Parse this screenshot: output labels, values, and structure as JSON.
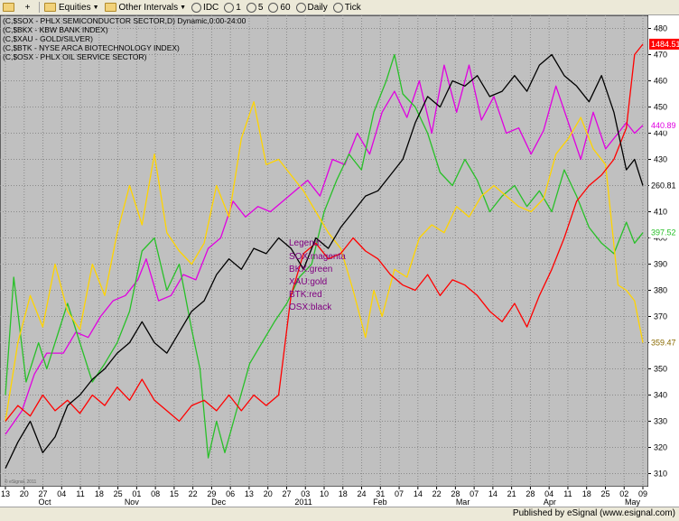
{
  "toolbar": {
    "items": [
      "Equities",
      "Other Intervals",
      "IDC",
      "1",
      "5",
      "60",
      "Daily",
      "Tick"
    ]
  },
  "header_lines": [
    {
      "text": "(C,$SOX - PHLX SEMICONDUCTOR SECTOR,D) Dynamic,0:00-24:00"
    },
    {
      "text": "(C,$BKX - KBW BANK INDEX)"
    },
    {
      "text": "(C,$XAU - GOLD/SILVER)"
    },
    {
      "text": "(C,$BTK - NYSE ARCA BIOTECHNOLOGY INDEX)"
    },
    {
      "text": "(C,$OSX - PHLX OIL SERVICE SECTOR)"
    }
  ],
  "legend": {
    "title": "Legend:",
    "items": [
      {
        "text": "SOX:magenta"
      },
      {
        "text": "BKX:green"
      },
      {
        "text": "XAU:gold"
      },
      {
        "text": "BTK:red"
      },
      {
        "text": "OSX:black"
      }
    ]
  },
  "watermark": "© eSignal, 2011",
  "footer": "Published by eSignal (www.esignal.com)",
  "chart_data": {
    "type": "line",
    "ylim": [
      305,
      485
    ],
    "grid": true,
    "yticks": [
      310,
      320,
      330,
      340,
      350,
      360,
      370,
      380,
      390,
      400,
      410,
      420,
      430,
      440,
      450,
      460,
      470,
      480
    ],
    "xticks": [
      "13",
      "20",
      "27",
      "04",
      "11",
      "18",
      "25",
      "01",
      "08",
      "15",
      "22",
      "29",
      "06",
      "13",
      "20",
      "27",
      "03",
      "10",
      "18",
      "24",
      "31",
      "07",
      "14",
      "22",
      "28",
      "07",
      "14",
      "21",
      "28",
      "04",
      "11",
      "18",
      "25",
      "02",
      "09"
    ],
    "months": [
      {
        "label": "Oct",
        "at": 9.5
      },
      {
        "label": "Nov",
        "at": 30.5
      },
      {
        "label": "Dec",
        "at": 51.5
      },
      {
        "label": "2011",
        "at": 72
      },
      {
        "label": "Feb",
        "at": 90.5
      },
      {
        "label": "Mar",
        "at": 110.5
      },
      {
        "label": "Apr",
        "at": 131.5
      },
      {
        "label": "May",
        "at": 151.5
      }
    ],
    "series": [
      {
        "label": "SOX",
        "color": "#e000e0",
        "last_label": "440.89",
        "last_fg": "#e000e0",
        "points": [
          [
            0,
            325
          ],
          [
            4,
            334
          ],
          [
            7,
            348
          ],
          [
            10,
            356
          ],
          [
            14,
            356
          ],
          [
            17,
            364
          ],
          [
            20,
            362
          ],
          [
            23,
            370
          ],
          [
            26,
            376
          ],
          [
            29,
            378
          ],
          [
            32,
            384
          ],
          [
            34,
            392
          ],
          [
            37,
            376
          ],
          [
            40,
            378
          ],
          [
            43,
            386
          ],
          [
            46,
            384
          ],
          [
            49,
            396
          ],
          [
            52,
            400
          ],
          [
            55,
            414
          ],
          [
            58,
            408
          ],
          [
            61,
            412
          ],
          [
            64,
            410
          ],
          [
            67,
            414
          ],
          [
            70,
            418
          ],
          [
            73,
            422
          ],
          [
            76,
            416
          ],
          [
            79,
            430
          ],
          [
            82,
            428
          ],
          [
            85,
            440
          ],
          [
            88,
            432
          ],
          [
            91,
            448
          ],
          [
            94,
            456
          ],
          [
            97,
            446
          ],
          [
            100,
            460
          ],
          [
            103,
            440
          ],
          [
            106,
            466
          ],
          [
            109,
            448
          ],
          [
            112,
            466
          ],
          [
            115,
            445
          ],
          [
            118,
            454
          ],
          [
            121,
            440
          ],
          [
            124,
            442
          ],
          [
            127,
            432
          ],
          [
            130,
            441
          ],
          [
            133,
            458
          ],
          [
            136,
            444
          ],
          [
            139,
            430
          ],
          [
            142,
            448
          ],
          [
            145,
            434
          ],
          [
            148,
            440
          ],
          [
            150,
            444
          ],
          [
            152,
            440
          ],
          [
            154,
            443
          ]
        ]
      },
      {
        "label": "BKX",
        "color": "#28c028",
        "last_label": "397.52",
        "last_fg": "#28c028",
        "points": [
          [
            0,
            340
          ],
          [
            2,
            385
          ],
          [
            5,
            345
          ],
          [
            8,
            360
          ],
          [
            10,
            350
          ],
          [
            13,
            365
          ],
          [
            15,
            375
          ],
          [
            18,
            360
          ],
          [
            21,
            345
          ],
          [
            24,
            352
          ],
          [
            27,
            360
          ],
          [
            30,
            372
          ],
          [
            33,
            395
          ],
          [
            36,
            400
          ],
          [
            39,
            380
          ],
          [
            42,
            390
          ],
          [
            45,
            365
          ],
          [
            47,
            350
          ],
          [
            49,
            316
          ],
          [
            51,
            330
          ],
          [
            53,
            318
          ],
          [
            56,
            335
          ],
          [
            59,
            352
          ],
          [
            62,
            360
          ],
          [
            65,
            368
          ],
          [
            68,
            375
          ],
          [
            71,
            385
          ],
          [
            74,
            390
          ],
          [
            77,
            410
          ],
          [
            80,
            422
          ],
          [
            83,
            432
          ],
          [
            86,
            426
          ],
          [
            89,
            448
          ],
          [
            92,
            460
          ],
          [
            94,
            470
          ],
          [
            96,
            455
          ],
          [
            99,
            450
          ],
          [
            102,
            440
          ],
          [
            105,
            425
          ],
          [
            108,
            420
          ],
          [
            111,
            430
          ],
          [
            114,
            422
          ],
          [
            117,
            410
          ],
          [
            120,
            416
          ],
          [
            123,
            420
          ],
          [
            126,
            412
          ],
          [
            129,
            418
          ],
          [
            132,
            410
          ],
          [
            135,
            426
          ],
          [
            138,
            416
          ],
          [
            141,
            404
          ],
          [
            144,
            398
          ],
          [
            147,
            394
          ],
          [
            150,
            406
          ],
          [
            152,
            398
          ],
          [
            154,
            402
          ]
        ]
      },
      {
        "label": "XAU",
        "color": "#ffd400",
        "last_label": "359.47",
        "last_fg": "#8a6a00",
        "points": [
          [
            0,
            330
          ],
          [
            3,
            360
          ],
          [
            6,
            378
          ],
          [
            9,
            366
          ],
          [
            12,
            390
          ],
          [
            15,
            372
          ],
          [
            18,
            365
          ],
          [
            21,
            390
          ],
          [
            24,
            378
          ],
          [
            27,
            402
          ],
          [
            30,
            420
          ],
          [
            33,
            405
          ],
          [
            36,
            432
          ],
          [
            39,
            402
          ],
          [
            42,
            395
          ],
          [
            45,
            390
          ],
          [
            48,
            398
          ],
          [
            51,
            420
          ],
          [
            54,
            408
          ],
          [
            57,
            438
          ],
          [
            60,
            452
          ],
          [
            63,
            428
          ],
          [
            66,
            430
          ],
          [
            69,
            424
          ],
          [
            72,
            418
          ],
          [
            75,
            410
          ],
          [
            78,
            402
          ],
          [
            81,
            396
          ],
          [
            84,
            380
          ],
          [
            87,
            362
          ],
          [
            89,
            380
          ],
          [
            91,
            370
          ],
          [
            94,
            388
          ],
          [
            97,
            385
          ],
          [
            100,
            400
          ],
          [
            103,
            405
          ],
          [
            106,
            402
          ],
          [
            109,
            412
          ],
          [
            112,
            408
          ],
          [
            115,
            416
          ],
          [
            118,
            420
          ],
          [
            121,
            416
          ],
          [
            124,
            412
          ],
          [
            127,
            410
          ],
          [
            130,
            415
          ],
          [
            133,
            432
          ],
          [
            136,
            438
          ],
          [
            139,
            446
          ],
          [
            142,
            434
          ],
          [
            145,
            428
          ],
          [
            148,
            382
          ],
          [
            150,
            380
          ],
          [
            152,
            376
          ],
          [
            154,
            360
          ]
        ]
      },
      {
        "label": "BTK",
        "color": "#ff0000",
        "last_label": "1484.51",
        "last_fg": "#ffffff",
        "last_bg": "#ff0000",
        "points": [
          [
            0,
            330
          ],
          [
            3,
            336
          ],
          [
            6,
            332
          ],
          [
            9,
            340
          ],
          [
            12,
            334
          ],
          [
            15,
            338
          ],
          [
            18,
            333
          ],
          [
            21,
            340
          ],
          [
            24,
            336
          ],
          [
            27,
            343
          ],
          [
            30,
            338
          ],
          [
            33,
            346
          ],
          [
            36,
            338
          ],
          [
            39,
            334
          ],
          [
            42,
            330
          ],
          [
            45,
            336
          ],
          [
            48,
            338
          ],
          [
            51,
            334
          ],
          [
            54,
            340
          ],
          [
            57,
            334
          ],
          [
            60,
            340
          ],
          [
            63,
            336
          ],
          [
            66,
            340
          ],
          [
            69,
            378
          ],
          [
            72,
            394
          ],
          [
            75,
            398
          ],
          [
            78,
            392
          ],
          [
            81,
            394
          ],
          [
            84,
            400
          ],
          [
            87,
            395
          ],
          [
            90,
            392
          ],
          [
            93,
            386
          ],
          [
            96,
            382
          ],
          [
            99,
            380
          ],
          [
            102,
            386
          ],
          [
            105,
            378
          ],
          [
            108,
            384
          ],
          [
            111,
            382
          ],
          [
            114,
            378
          ],
          [
            117,
            372
          ],
          [
            120,
            368
          ],
          [
            123,
            375
          ],
          [
            126,
            366
          ],
          [
            129,
            378
          ],
          [
            132,
            388
          ],
          [
            135,
            400
          ],
          [
            138,
            414
          ],
          [
            141,
            420
          ],
          [
            144,
            424
          ],
          [
            147,
            430
          ],
          [
            150,
            442
          ],
          [
            152,
            470
          ],
          [
            154,
            474
          ]
        ]
      },
      {
        "label": "OSX",
        "color": "#000000",
        "last_label": "260.81",
        "last_fg": "#000000",
        "points": [
          [
            0,
            312
          ],
          [
            3,
            322
          ],
          [
            6,
            330
          ],
          [
            9,
            318
          ],
          [
            12,
            324
          ],
          [
            15,
            336
          ],
          [
            18,
            340
          ],
          [
            21,
            346
          ],
          [
            24,
            350
          ],
          [
            27,
            356
          ],
          [
            30,
            360
          ],
          [
            33,
            368
          ],
          [
            36,
            360
          ],
          [
            39,
            356
          ],
          [
            42,
            364
          ],
          [
            45,
            372
          ],
          [
            48,
            376
          ],
          [
            51,
            386
          ],
          [
            54,
            392
          ],
          [
            57,
            388
          ],
          [
            60,
            396
          ],
          [
            63,
            394
          ],
          [
            66,
            400
          ],
          [
            69,
            396
          ],
          [
            72,
            388
          ],
          [
            75,
            400
          ],
          [
            78,
            396
          ],
          [
            81,
            404
          ],
          [
            84,
            410
          ],
          [
            87,
            416
          ],
          [
            90,
            418
          ],
          [
            93,
            424
          ],
          [
            96,
            430
          ],
          [
            99,
            444
          ],
          [
            102,
            454
          ],
          [
            105,
            450
          ],
          [
            108,
            460
          ],
          [
            111,
            458
          ],
          [
            114,
            462
          ],
          [
            117,
            454
          ],
          [
            120,
            456
          ],
          [
            123,
            462
          ],
          [
            126,
            456
          ],
          [
            129,
            466
          ],
          [
            132,
            470
          ],
          [
            135,
            462
          ],
          [
            138,
            458
          ],
          [
            141,
            452
          ],
          [
            144,
            462
          ],
          [
            147,
            448
          ],
          [
            150,
            426
          ],
          [
            152,
            430
          ],
          [
            154,
            420
          ]
        ]
      }
    ]
  }
}
